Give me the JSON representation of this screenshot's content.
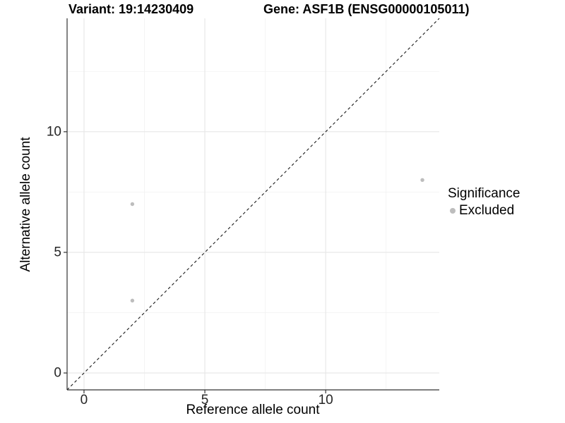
{
  "title": {
    "variant": "Variant: 19:14230409",
    "gene": "Gene: ASF1B (ENSG00000105011)"
  },
  "axis": {
    "x_label": "Reference allele count",
    "y_label": "Alternative allele count"
  },
  "legend": {
    "title": "Significance",
    "items": [
      {
        "label": "Excluded",
        "color": "#bdbdbd"
      }
    ]
  },
  "chart_data": {
    "type": "scatter",
    "title": "Variant: 19:14230409 — Gene: ASF1B (ENSG00000105011)",
    "xlabel": "Reference allele count",
    "ylabel": "Alternative allele count",
    "xlim": [
      -0.7,
      14.7
    ],
    "ylim": [
      -0.7,
      14.7
    ],
    "x_ticks": [
      0,
      5,
      10
    ],
    "y_ticks": [
      0,
      5,
      10
    ],
    "x_minor_ticks": [
      2.5,
      7.5,
      12.5
    ],
    "y_minor_ticks": [
      2.5,
      7.5,
      12.5
    ],
    "grid": true,
    "legend_position": "right",
    "series": [
      {
        "name": "Excluded",
        "color": "#bdbdbd",
        "marker": "circle",
        "points": [
          [
            2,
            3
          ],
          [
            2,
            7
          ],
          [
            14,
            8
          ]
        ]
      }
    ],
    "reference_line": {
      "type": "identity",
      "slope": 1,
      "intercept": 0,
      "style": "dashed",
      "color": "#1a1a1a"
    }
  },
  "style": {
    "grid_major": "#e6e6e6",
    "grid_minor": "#f2f2f2",
    "axis_line": "#333333",
    "tick_mark": "#333333"
  }
}
